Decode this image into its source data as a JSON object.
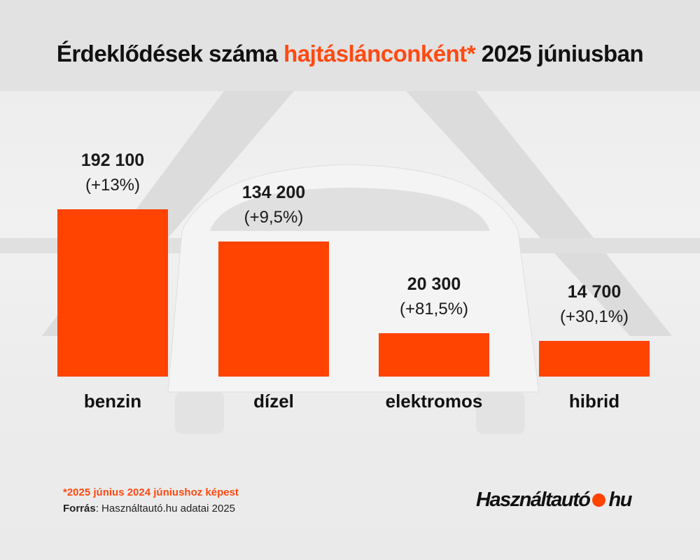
{
  "title": {
    "pre": "Érdeklődések száma ",
    "highlight": "hajtáslánconként*",
    "post": " 2025 júniusban"
  },
  "colors": {
    "bar": "#ff4300",
    "highlight": "#ff4a12"
  },
  "chart_data": {
    "type": "bar",
    "title": "Érdeklődések száma hajtáslánconként* 2025 júniusban",
    "categories": [
      "benzin",
      "dízel",
      "elektromos",
      "hibrid"
    ],
    "values": [
      192100,
      134200,
      20300,
      14700
    ],
    "value_labels": [
      "192 100",
      "134 200",
      "20 300",
      "14 700"
    ],
    "change_labels": [
      "(+13%)",
      "(+9,5%)",
      "(+81,5%)",
      "(+30,1%)"
    ],
    "changes_percent": [
      13,
      9.5,
      81.5,
      30.1
    ],
    "grid": false,
    "axes_visible": false
  },
  "footer": {
    "note": "*2025 június 2024 júniushoz képest",
    "source_label": "Forrás",
    "source_text": ": Használtautó.hu adatai 2025"
  },
  "logo": {
    "left": "Használtautó",
    "right": "hu"
  }
}
